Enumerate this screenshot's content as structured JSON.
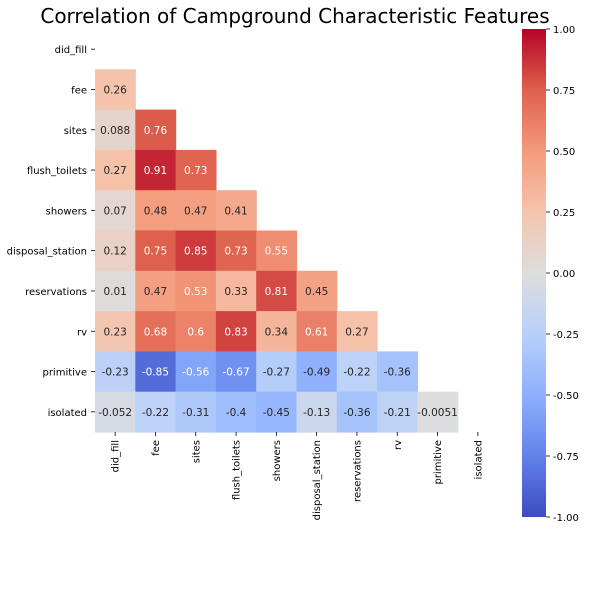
{
  "chart_data": {
    "type": "heatmap",
    "title": "Correlation of Campground Characteristic Features",
    "xlabel": "",
    "ylabel": "",
    "labels": [
      "did_fill",
      "fee",
      "sites",
      "flush_toilets",
      "showers",
      "disposal_station",
      "reservations",
      "rv",
      "primitive",
      "isolated"
    ],
    "mask": "upper-triangle-including-diagonal",
    "values": [
      [
        null,
        null,
        null,
        null,
        null,
        null,
        null,
        null,
        null,
        null
      ],
      [
        "0.26",
        null,
        null,
        null,
        null,
        null,
        null,
        null,
        null,
        null
      ],
      [
        "0.088",
        "0.76",
        null,
        null,
        null,
        null,
        null,
        null,
        null,
        null
      ],
      [
        "0.27",
        "0.91",
        "0.73",
        null,
        null,
        null,
        null,
        null,
        null,
        null
      ],
      [
        "0.07",
        "0.48",
        "0.47",
        "0.41",
        null,
        null,
        null,
        null,
        null,
        null
      ],
      [
        "0.12",
        "0.75",
        "0.85",
        "0.73",
        "0.55",
        null,
        null,
        null,
        null,
        null
      ],
      [
        "0.01",
        "0.47",
        "0.53",
        "0.33",
        "0.81",
        "0.45",
        null,
        null,
        null,
        null
      ],
      [
        "0.23",
        "0.68",
        "0.6",
        "0.83",
        "0.34",
        "0.61",
        "0.27",
        null,
        null,
        null
      ],
      [
        "-0.23",
        "-0.85",
        "-0.56",
        "-0.67",
        "-0.27",
        "-0.49",
        "-0.22",
        "-0.36",
        null,
        null
      ],
      [
        "-0.052",
        "-0.22",
        "-0.31",
        "-0.4",
        "-0.45",
        "-0.13",
        "-0.36",
        "-0.21",
        "-0.0051",
        null
      ]
    ],
    "colormap": "coolwarm",
    "vmin": -1.0,
    "vmax": 1.0,
    "colorbar_ticks": [
      "-1.00",
      "-0.75",
      "-0.50",
      "-0.25",
      "0.00",
      "0.25",
      "0.50",
      "0.75",
      "1.00"
    ],
    "grid": false,
    "legend": "colorbar-right"
  }
}
